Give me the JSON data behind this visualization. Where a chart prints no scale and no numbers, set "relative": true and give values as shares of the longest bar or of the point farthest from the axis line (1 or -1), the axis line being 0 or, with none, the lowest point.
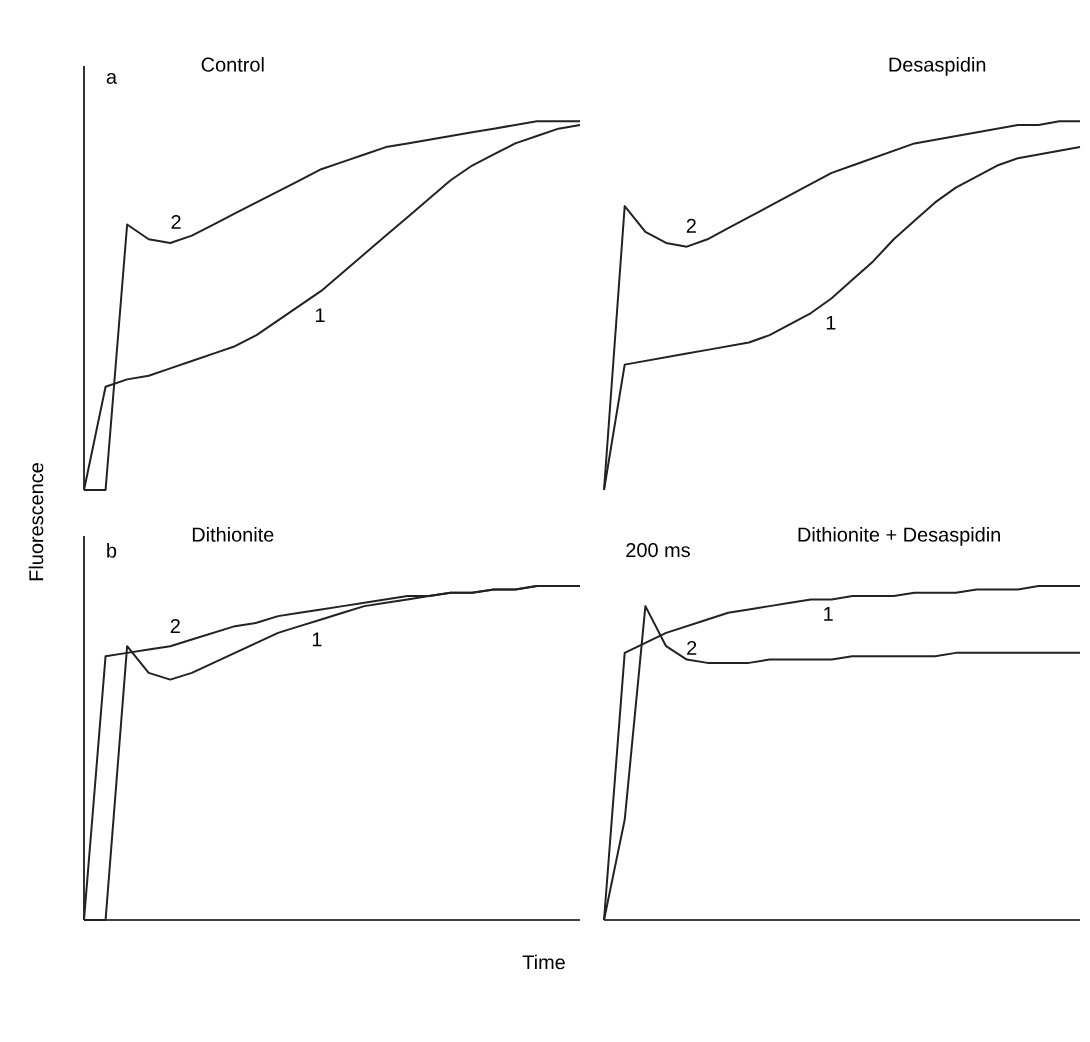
{
  "chart_data": [
    {
      "type": "line",
      "title": "Control",
      "relative": true,
      "annotations": [
        "a"
      ],
      "categories": [
        null,
        null,
        null,
        null,
        null,
        null,
        null,
        null,
        null,
        null,
        null,
        null,
        null,
        null,
        null,
        null,
        null,
        null,
        null,
        null,
        null,
        null,
        null,
        null
      ],
      "series": [
        {
          "name": "1",
          "color": "#222222",
          "values": [
            0,
            0.28,
            0.3,
            0.31,
            0.33,
            0.35,
            0.37,
            0.39,
            0.42,
            0.46,
            0.5,
            0.54,
            0.59,
            0.64,
            0.69,
            0.74,
            0.79,
            0.84,
            0.88,
            0.91,
            0.94,
            0.96,
            0.98,
            0.99
          ]
        },
        {
          "name": "2",
          "color": "#222222",
          "values": [
            0,
            0,
            0.72,
            0.68,
            0.67,
            0.69,
            0.72,
            0.75,
            0.78,
            0.81,
            0.84,
            0.87,
            0.89,
            0.91,
            0.93,
            0.94,
            0.95,
            0.96,
            0.97,
            0.98,
            0.99,
            1.0,
            1.0,
            1.0
          ]
        }
      ]
    },
    {
      "type": "line",
      "title": "Desaspidin",
      "relative": true,
      "categories": [
        null,
        null,
        null,
        null,
        null,
        null,
        null,
        null,
        null,
        null,
        null,
        null,
        null,
        null,
        null,
        null,
        null,
        null,
        null,
        null,
        null,
        null,
        null,
        null
      ],
      "series": [
        {
          "name": "1",
          "color": "#222222",
          "values": [
            0,
            0.34,
            0.35,
            0.36,
            0.37,
            0.38,
            0.39,
            0.4,
            0.42,
            0.45,
            0.48,
            0.52,
            0.57,
            0.62,
            0.68,
            0.73,
            0.78,
            0.82,
            0.85,
            0.88,
            0.9,
            0.91,
            0.92,
            0.93
          ]
        },
        {
          "name": "2",
          "color": "#222222",
          "values": [
            0,
            0.77,
            0.7,
            0.67,
            0.66,
            0.68,
            0.71,
            0.74,
            0.77,
            0.8,
            0.83,
            0.86,
            0.88,
            0.9,
            0.92,
            0.94,
            0.95,
            0.96,
            0.97,
            0.98,
            0.99,
            0.99,
            1.0,
            1.0
          ]
        }
      ]
    },
    {
      "type": "line",
      "title": "Dithionite",
      "ylabel": "Fluorescence",
      "relative": true,
      "annotations": [
        "b"
      ],
      "categories": [
        null,
        null,
        null,
        null,
        null,
        null,
        null,
        null,
        null,
        null,
        null,
        null,
        null,
        null,
        null,
        null,
        null,
        null,
        null,
        null,
        null,
        null,
        null,
        null
      ],
      "series": [
        {
          "name": "1",
          "color": "#222222",
          "values": [
            0,
            0,
            0.82,
            0.74,
            0.72,
            0.74,
            0.77,
            0.8,
            0.83,
            0.86,
            0.88,
            0.9,
            0.92,
            0.94,
            0.95,
            0.96,
            0.97,
            0.98,
            0.98,
            0.99,
            0.99,
            1.0,
            1.0,
            1.0
          ]
        },
        {
          "name": "2",
          "color": "#222222",
          "values": [
            0,
            0.79,
            0.8,
            0.81,
            0.82,
            0.84,
            0.86,
            0.88,
            0.89,
            0.91,
            0.92,
            0.93,
            0.94,
            0.95,
            0.96,
            0.97,
            0.97,
            0.98,
            0.98,
            0.99,
            0.99,
            1.0,
            1.0,
            1.0
          ]
        }
      ]
    },
    {
      "type": "line",
      "title": "Dithionite + Desaspidin",
      "xlabel": "Time",
      "relative": true,
      "annotations": [
        "200 ms"
      ],
      "categories": [
        null,
        null,
        null,
        null,
        null,
        null,
        null,
        null,
        null,
        null,
        null,
        null,
        null,
        null,
        null,
        null,
        null,
        null,
        null,
        null,
        null,
        null,
        null,
        null
      ],
      "series": [
        {
          "name": "1",
          "color": "#222222",
          "values": [
            0,
            0.8,
            0.83,
            0.86,
            0.88,
            0.9,
            0.92,
            0.93,
            0.94,
            0.95,
            0.96,
            0.96,
            0.97,
            0.97,
            0.97,
            0.98,
            0.98,
            0.98,
            0.99,
            0.99,
            0.99,
            1.0,
            1.0,
            1.0
          ]
        },
        {
          "name": "2",
          "color": "#222222",
          "values": [
            0,
            0.3,
            0.94,
            0.82,
            0.78,
            0.77,
            0.77,
            0.77,
            0.78,
            0.78,
            0.78,
            0.78,
            0.79,
            0.79,
            0.79,
            0.79,
            0.79,
            0.8,
            0.8,
            0.8,
            0.8,
            0.8,
            0.8,
            0.8
          ]
        }
      ]
    }
  ]
}
